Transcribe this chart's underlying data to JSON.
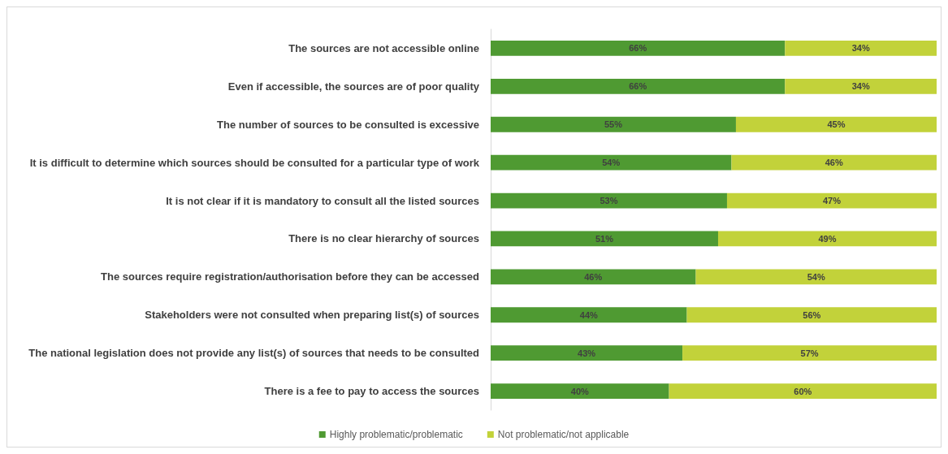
{
  "chart_data": {
    "type": "bar",
    "orientation": "horizontal",
    "stacked": true,
    "legend": "bottom",
    "grid": false,
    "tick_labels": "y",
    "categories": [
      "The sources are not accessible online",
      "Even if accessible, the sources are of poor quality",
      "The number of sources to be consulted is excessive",
      "It is difficult to determine which sources should be consulted for a particular type of work",
      "It is not clear if it is mandatory to consult all the listed sources",
      "There is no clear hierarchy of sources",
      "The sources require registration/authorisation before they can be accessed",
      "Stakeholders were not consulted when preparing list(s) of sources",
      "The national legislation does not provide any list(s) of sources that needs to be consulted",
      "There is a fee to pay to access the sources"
    ],
    "series": [
      {
        "name": "Highly problematic/problematic",
        "color": "#4f9a32",
        "values": [
          66,
          66,
          55,
          54,
          53,
          51,
          46,
          44,
          43,
          40
        ],
        "value_labels": [
          "66%",
          "66%",
          "55%",
          "54%",
          "53%",
          "51%",
          "46%",
          "44%",
          "43%",
          "40%"
        ]
      },
      {
        "name": "Not problematic/not applicable",
        "color": "#c2d23a",
        "values": [
          34,
          34,
          45,
          46,
          47,
          49,
          54,
          56,
          57,
          60
        ],
        "value_labels": [
          "34%",
          "34%",
          "45%",
          "46%",
          "47%",
          "49%",
          "54%",
          "56%",
          "57%",
          "60%"
        ]
      }
    ]
  }
}
